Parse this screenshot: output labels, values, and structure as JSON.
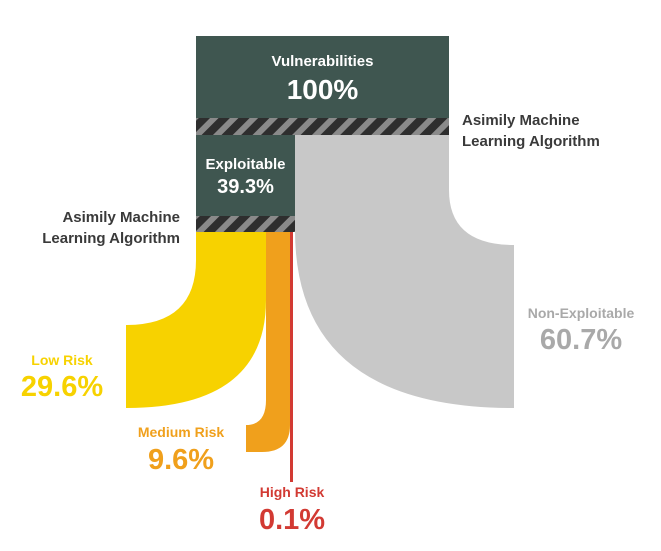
{
  "colors": {
    "dark_box": "#3f5650",
    "hatch_dark": "#2e2e2e",
    "hatch_light": "#8a8a8a",
    "non_exploitable": "#c8c8c8",
    "non_exploitable_text": "#a9a9a9",
    "low_risk": "#f7d200",
    "medium_risk": "#f0a01c",
    "high_risk": "#d23a33",
    "algo_text": "#3a3a3a"
  },
  "vulnerabilities": {
    "label": "Vulnerabilities",
    "value": "100%"
  },
  "exploitable": {
    "label": "Exploitable",
    "value": "39.3%"
  },
  "algorithm_right": {
    "line1": "Asimily Machine",
    "line2": "Learning Algorithm"
  },
  "algorithm_left": {
    "line1": "Asimily Machine",
    "line2": "Learning Algorithm"
  },
  "non_exploitable": {
    "label": "Non-Exploitable",
    "value": "60.7%"
  },
  "low_risk": {
    "label": "Low Risk",
    "value": "29.6%"
  },
  "medium_risk": {
    "label": "Medium Risk",
    "value": "9.6%"
  },
  "high_risk": {
    "label": "High Risk",
    "value": "0.1%"
  }
}
